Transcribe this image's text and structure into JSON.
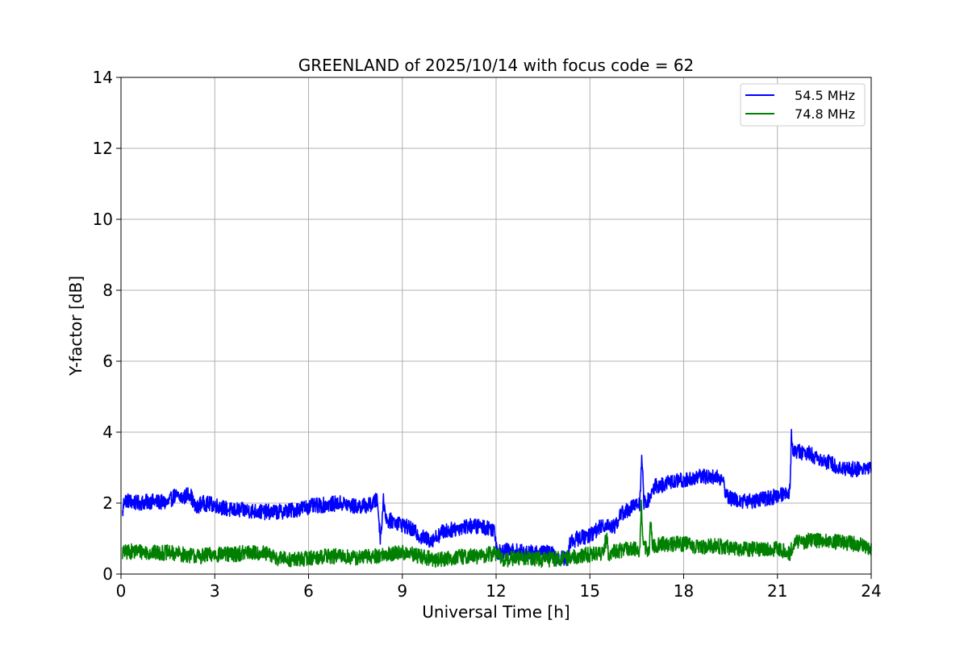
{
  "chart_data": {
    "type": "line",
    "title": "GREENLAND of 2025/10/14 with focus code = 62",
    "xlabel": "Universal Time [h]",
    "ylabel": "Y-factor [dB]",
    "xlim": [
      0,
      24
    ],
    "ylim": [
      0,
      14
    ],
    "xticks": [
      0,
      3,
      6,
      9,
      12,
      15,
      18,
      21,
      24
    ],
    "yticks": [
      0,
      2,
      4,
      6,
      8,
      10,
      12,
      14
    ],
    "grid": true,
    "legend_position": "top-right",
    "series": [
      {
        "name": "54.5 MHz",
        "color": "#0000ff",
        "noise": 0.22,
        "x": [
          0.05,
          0.1,
          0.5,
          1.0,
          1.5,
          1.7,
          2.0,
          2.2,
          2.4,
          2.5,
          2.6,
          3.0,
          3.5,
          4.0,
          4.5,
          5.0,
          5.5,
          6.0,
          6.5,
          7.0,
          7.5,
          8.0,
          8.2,
          8.3,
          8.4,
          8.5,
          8.7,
          9.0,
          9.3,
          9.6,
          9.9,
          10.1,
          10.3,
          10.6,
          11.0,
          11.4,
          11.8,
          11.95,
          12.05,
          12.2,
          12.6,
          13.0,
          13.4,
          13.7,
          14.0,
          14.3,
          14.35,
          14.6,
          15.0,
          15.3,
          15.5,
          15.8,
          16.0,
          16.3,
          16.6,
          16.67,
          16.72,
          16.9,
          17.0,
          17.1,
          17.3,
          17.6,
          18.0,
          18.3,
          18.6,
          19.0,
          19.2,
          19.4,
          19.6,
          20.0,
          20.5,
          21.0,
          21.4,
          21.45,
          21.5,
          21.7,
          22.0,
          22.5,
          23.0,
          23.5,
          24.0
        ],
        "y": [
          1.7,
          2.1,
          2.0,
          2.05,
          2.0,
          2.2,
          2.15,
          2.3,
          1.8,
          1.95,
          2.0,
          1.95,
          1.8,
          1.8,
          1.75,
          1.75,
          1.8,
          1.9,
          1.95,
          2.0,
          1.9,
          1.95,
          2.1,
          1.0,
          2.1,
          1.5,
          1.5,
          1.4,
          1.25,
          1.05,
          0.95,
          1.05,
          1.2,
          1.25,
          1.35,
          1.35,
          1.3,
          1.25,
          0.6,
          0.65,
          0.65,
          0.6,
          0.6,
          0.6,
          0.45,
          0.45,
          0.9,
          1.0,
          1.1,
          1.3,
          1.4,
          1.35,
          1.7,
          1.85,
          2.0,
          3.4,
          2.0,
          2.1,
          2.3,
          2.5,
          2.5,
          2.6,
          2.65,
          2.7,
          2.75,
          2.75,
          2.7,
          2.2,
          2.1,
          2.05,
          2.1,
          2.2,
          2.35,
          4.0,
          3.45,
          3.45,
          3.4,
          3.2,
          3.0,
          2.95,
          3.0
        ]
      },
      {
        "name": "74.8 MHz",
        "color": "#008000",
        "noise": 0.22,
        "x": [
          0.05,
          0.5,
          1.0,
          1.5,
          2.0,
          2.5,
          3.0,
          3.5,
          4.0,
          4.5,
          5.0,
          5.5,
          6.0,
          6.5,
          7.0,
          7.5,
          8.0,
          8.5,
          9.0,
          9.3,
          9.6,
          10.0,
          10.5,
          11.0,
          11.5,
          12.0,
          12.2,
          12.6,
          13.0,
          13.5,
          14.0,
          14.3,
          14.6,
          15.0,
          15.4,
          15.55,
          15.6,
          15.8,
          16.2,
          16.6,
          16.65,
          16.7,
          16.9,
          16.95,
          17.0,
          17.5,
          18.0,
          18.5,
          19.0,
          19.5,
          20.0,
          20.5,
          21.0,
          21.4,
          21.5,
          22.0,
          22.5,
          23.0,
          23.5,
          24.0
        ],
        "y": [
          0.6,
          0.65,
          0.6,
          0.6,
          0.55,
          0.5,
          0.55,
          0.55,
          0.6,
          0.6,
          0.45,
          0.4,
          0.45,
          0.5,
          0.5,
          0.45,
          0.5,
          0.55,
          0.6,
          0.55,
          0.5,
          0.4,
          0.45,
          0.5,
          0.5,
          0.6,
          0.4,
          0.45,
          0.45,
          0.4,
          0.45,
          0.45,
          0.5,
          0.55,
          0.6,
          1.1,
          0.5,
          0.65,
          0.7,
          0.7,
          2.0,
          0.75,
          0.7,
          1.6,
          0.8,
          0.85,
          0.85,
          0.75,
          0.8,
          0.75,
          0.7,
          0.7,
          0.7,
          0.6,
          0.85,
          0.95,
          0.95,
          0.9,
          0.85,
          0.75
        ]
      }
    ]
  }
}
